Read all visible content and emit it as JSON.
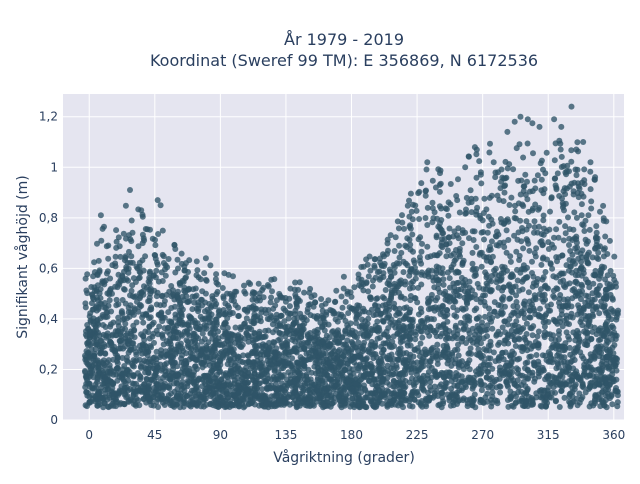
{
  "chart_data": {
    "type": "scatter",
    "title_line1": "År 1979 - 2019",
    "title_line2": "Koordinat (Sweref 99 TM): E 356869, N 6172536",
    "xlabel": "Vågriktning (grader)",
    "ylabel": "Signifikant våghöjd (m)",
    "xlim": [
      -18,
      367
    ],
    "ylim": [
      0,
      1.29
    ],
    "x_ticks": [
      {
        "value": 0,
        "label": "0"
      },
      {
        "value": 45,
        "label": "45"
      },
      {
        "value": 90,
        "label": "90"
      },
      {
        "value": 135,
        "label": "135"
      },
      {
        "value": 180,
        "label": "180"
      },
      {
        "value": 225,
        "label": "225"
      },
      {
        "value": 270,
        "label": "270"
      },
      {
        "value": 315,
        "label": "315"
      },
      {
        "value": 360,
        "label": "360"
      }
    ],
    "y_ticks": [
      {
        "value": 0,
        "label": "0"
      },
      {
        "value": 0.2,
        "label": "0,2"
      },
      {
        "value": 0.4,
        "label": "0,4"
      },
      {
        "value": 0.6,
        "label": "0,6"
      },
      {
        "value": 0.8,
        "label": "0,8"
      },
      {
        "value": 1.0,
        "label": "1"
      },
      {
        "value": 1.2,
        "label": "1,2"
      }
    ],
    "grid": true,
    "marker_color": "#2f5468",
    "plot_background": "#e5e5f0",
    "series": [
      {
        "x_range": [
          -3,
          363
        ],
        "y_floor": 0.05,
        "upper_envelope": [
          {
            "x": 0,
            "y": 0.64
          },
          {
            "x": 10,
            "y": 0.8
          },
          {
            "x": 20,
            "y": 0.78
          },
          {
            "x": 28,
            "y": 0.91
          },
          {
            "x": 40,
            "y": 0.82
          },
          {
            "x": 48,
            "y": 0.86
          },
          {
            "x": 60,
            "y": 0.72
          },
          {
            "x": 75,
            "y": 0.68
          },
          {
            "x": 90,
            "y": 0.62
          },
          {
            "x": 105,
            "y": 0.58
          },
          {
            "x": 120,
            "y": 0.56
          },
          {
            "x": 135,
            "y": 0.58
          },
          {
            "x": 150,
            "y": 0.56
          },
          {
            "x": 165,
            "y": 0.55
          },
          {
            "x": 180,
            "y": 0.6
          },
          {
            "x": 195,
            "y": 0.7
          },
          {
            "x": 210,
            "y": 0.8
          },
          {
            "x": 222,
            "y": 0.93
          },
          {
            "x": 235,
            "y": 1.04
          },
          {
            "x": 250,
            "y": 1.05
          },
          {
            "x": 265,
            "y": 1.1
          },
          {
            "x": 280,
            "y": 1.12
          },
          {
            "x": 295,
            "y": 1.2
          },
          {
            "x": 305,
            "y": 1.18
          },
          {
            "x": 320,
            "y": 1.17
          },
          {
            "x": 331,
            "y": 1.24
          },
          {
            "x": 340,
            "y": 1.08
          },
          {
            "x": 350,
            "y": 0.97
          },
          {
            "x": 357,
            "y": 0.76
          },
          {
            "x": 362,
            "y": 0.64
          }
        ],
        "outliers": [
          {
            "x": 28,
            "y": 0.91
          },
          {
            "x": 47,
            "y": 0.87
          },
          {
            "x": 49,
            "y": 0.85
          },
          {
            "x": 8,
            "y": 0.81
          },
          {
            "x": 232,
            "y": 1.02
          },
          {
            "x": 258,
            "y": 1.0
          },
          {
            "x": 266,
            "y": 1.07
          },
          {
            "x": 287,
            "y": 1.14
          },
          {
            "x": 292,
            "y": 1.18
          },
          {
            "x": 296,
            "y": 1.2
          },
          {
            "x": 301,
            "y": 1.19
          },
          {
            "x": 309,
            "y": 1.16
          },
          {
            "x": 319,
            "y": 1.19
          },
          {
            "x": 324,
            "y": 1.16
          },
          {
            "x": 331,
            "y": 1.24
          },
          {
            "x": 339,
            "y": 1.1
          },
          {
            "x": 347,
            "y": 0.95
          },
          {
            "x": 344,
            "y": 1.02
          }
        ]
      }
    ]
  }
}
